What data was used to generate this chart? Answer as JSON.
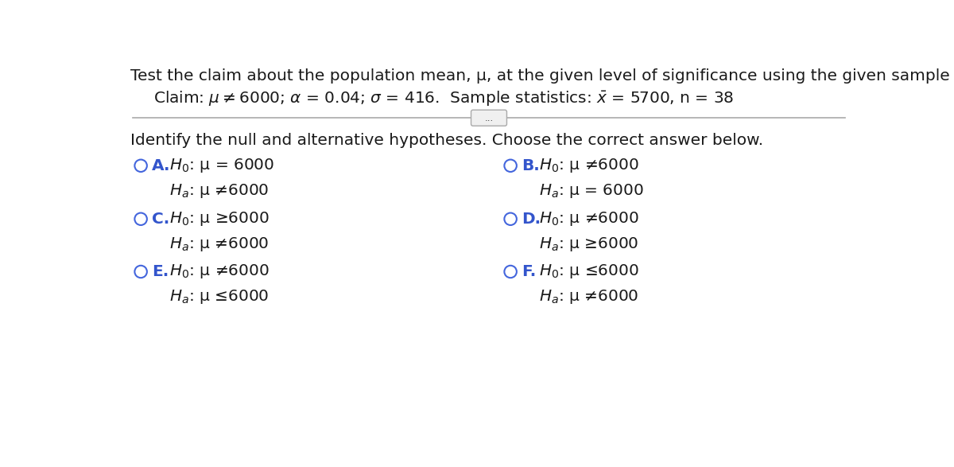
{
  "title": "Test the claim about the population mean, μ, at the given level of significance using the given sample statistics.",
  "identify_line": "Identify the null and alternative hypotheses. Choose the correct answer below.",
  "bg_color": "#ffffff",
  "text_color": "#1a1a1a",
  "label_color": "#3355cc",
  "circle_color": "#4466dd",
  "divider_color": "#aaaaaa",
  "title_fontsize": 14.5,
  "claim_fontsize": 14.5,
  "body_fontsize": 14.5,
  "option_fontsize": 14.5,
  "options": {
    "A": {
      "label": "A.",
      "h0": "$H_0$: μ = 6000",
      "ha": "$H_a$: μ ≠6000"
    },
    "B": {
      "label": "B.",
      "h0": "$H_0$: μ ≠6000",
      "ha": "$H_a$: μ = 6000"
    },
    "C": {
      "label": "C.",
      "h0": "$H_0$: μ ≥6000",
      "ha": "$H_a$: μ ≠6000"
    },
    "D": {
      "label": "D.",
      "h0": "$H_0$: μ ≠6000",
      "ha": "$H_a$: μ ≥6000"
    },
    "E": {
      "label": "E.",
      "h0": "$H_0$: μ ≠6000",
      "ha": "$H_a$: μ ≤6000"
    },
    "F": {
      "label": "F.",
      "h0": "$H_0$: μ ≤6000",
      "ha": "$H_a$: μ ≠6000"
    }
  }
}
